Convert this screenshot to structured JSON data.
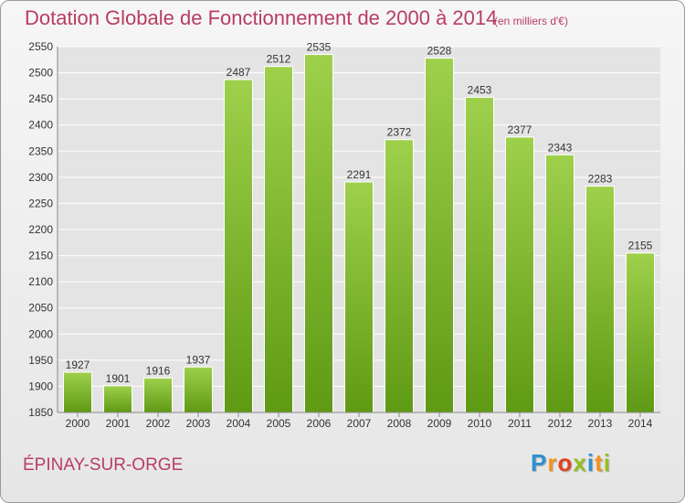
{
  "title": "Dotation Globale de Fonctionnement de 2000 à 2014",
  "unit_note": "(en milliers d'€)",
  "city": "ÉPINAY-SUR-ORGE",
  "logo": {
    "letters": [
      "P",
      "r",
      "o",
      "x",
      "i",
      "t",
      "i"
    ],
    "colors": [
      "#2e8fd0",
      "#f1931c",
      "#e0411f",
      "#93c01f",
      "#2e8fd0",
      "#f1931c",
      "#93c01f"
    ]
  },
  "colors": {
    "bar_light": "#9ed04c",
    "bar_dark": "#5f9a14",
    "text": "#333333",
    "grid": "#ffffff",
    "accent": "#b83d62"
  },
  "chart_data": {
    "type": "bar",
    "categories": [
      "2000",
      "2001",
      "2002",
      "2003",
      "2004",
      "2005",
      "2006",
      "2007",
      "2008",
      "2009",
      "2010",
      "2011",
      "2012",
      "2013",
      "2014"
    ],
    "values": [
      1927,
      1901,
      1916,
      1937,
      2487,
      2512,
      2535,
      2291,
      2372,
      2528,
      2453,
      2377,
      2343,
      2283,
      2155
    ],
    "ylim": [
      1850,
      2550
    ],
    "yticks": [
      1850,
      1900,
      1950,
      2000,
      2050,
      2100,
      2150,
      2200,
      2250,
      2300,
      2350,
      2400,
      2450,
      2500,
      2550
    ],
    "grid": true,
    "xlabel": "",
    "ylabel": ""
  }
}
